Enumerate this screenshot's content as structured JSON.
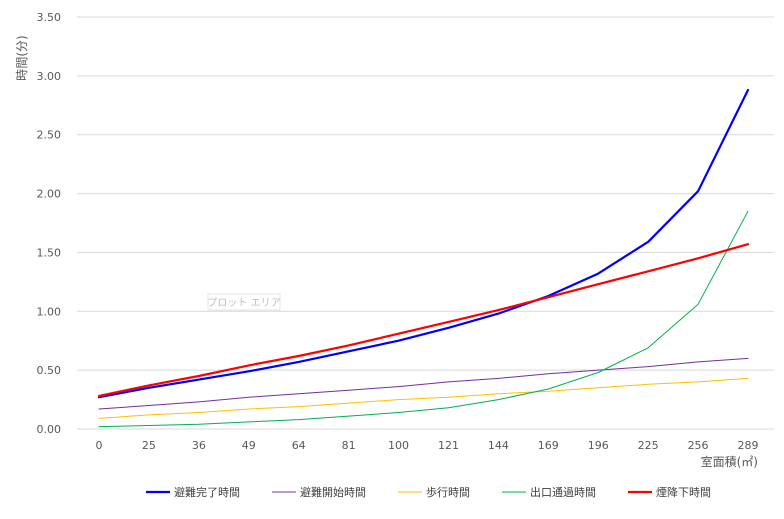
{
  "chart_data": {
    "type": "line",
    "xlabel": "室面積(㎡)",
    "ylabel": "時間(分)",
    "ylim": [
      0,
      3.5
    ],
    "y_ticks": [
      "0.00",
      "0.50",
      "1.00",
      "1.50",
      "2.00",
      "2.50",
      "3.00",
      "3.50"
    ],
    "categories": [
      "0",
      "25",
      "36",
      "49",
      "64",
      "81",
      "100",
      "121",
      "144",
      "169",
      "196",
      "225",
      "256",
      "289"
    ],
    "grid": true,
    "legend_position": "bottom",
    "hover_label": "プロット エリア",
    "series": [
      {
        "name": "避難完了時間",
        "color": "#0000ff",
        "width": 2.2,
        "values": [
          0.27,
          0.35,
          0.42,
          0.49,
          0.57,
          0.66,
          0.75,
          0.86,
          0.98,
          1.13,
          1.32,
          1.59,
          2.02,
          2.88
        ]
      },
      {
        "name": "避難開始時間",
        "color": "#7030a0",
        "width": 1,
        "values": [
          0.17,
          0.2,
          0.23,
          0.27,
          0.3,
          0.33,
          0.36,
          0.4,
          0.43,
          0.47,
          0.5,
          0.53,
          0.57,
          0.6
        ]
      },
      {
        "name": "歩行時間",
        "color": "#ffc000",
        "width": 1,
        "values": [
          0.09,
          0.12,
          0.14,
          0.17,
          0.19,
          0.22,
          0.25,
          0.27,
          0.3,
          0.32,
          0.35,
          0.38,
          0.4,
          0.43
        ]
      },
      {
        "name": "出口通過時間",
        "color": "#00b050",
        "width": 1,
        "values": [
          0.02,
          0.03,
          0.04,
          0.06,
          0.08,
          0.11,
          0.14,
          0.18,
          0.25,
          0.34,
          0.48,
          0.69,
          1.06,
          1.85
        ]
      },
      {
        "name": "煙降下時間",
        "color": "#ff0000",
        "width": 2.2,
        "values": [
          0.28,
          0.37,
          0.45,
          0.54,
          0.62,
          0.71,
          0.81,
          0.91,
          1.01,
          1.12,
          1.23,
          1.34,
          1.45,
          1.57
        ]
      }
    ]
  }
}
